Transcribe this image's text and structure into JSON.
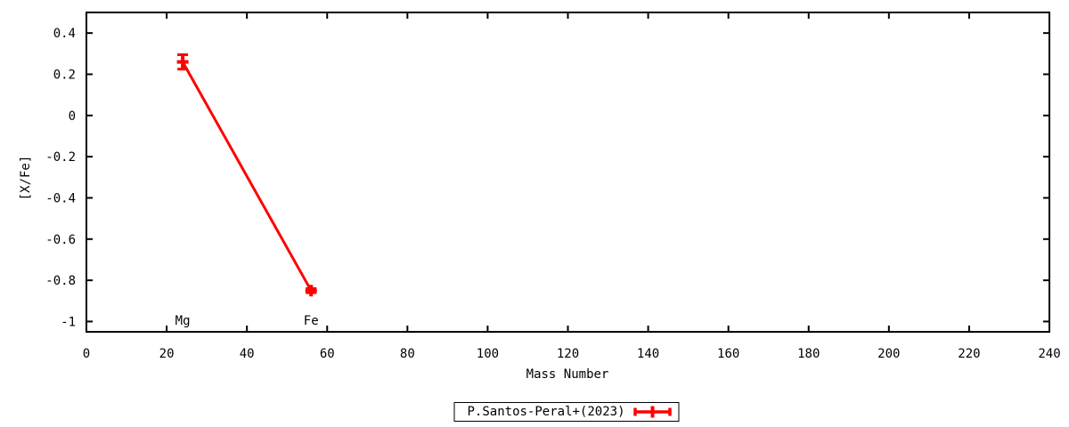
{
  "chart_data": {
    "type": "line",
    "title": "",
    "xlabel": "Mass Number",
    "ylabel": "[X/Fe]",
    "xlim": [
      0,
      240
    ],
    "ylim": [
      -1.05,
      0.5
    ],
    "grid": false,
    "legend_position": "below-center",
    "x_ticks": [
      {
        "value": 0,
        "label": "0"
      },
      {
        "value": 20,
        "label": "20"
      },
      {
        "value": 40,
        "label": "40"
      },
      {
        "value": 60,
        "label": "60"
      },
      {
        "value": 80,
        "label": "80"
      },
      {
        "value": 100,
        "label": "100"
      },
      {
        "value": 120,
        "label": "120"
      },
      {
        "value": 140,
        "label": "140"
      },
      {
        "value": 160,
        "label": "160"
      },
      {
        "value": 180,
        "label": "180"
      },
      {
        "value": 200,
        "label": "200"
      },
      {
        "value": 220,
        "label": "220"
      },
      {
        "value": 240,
        "label": "240"
      }
    ],
    "y_ticks": [
      {
        "value": 0.4,
        "label": "0.4"
      },
      {
        "value": 0.2,
        "label": "0.2"
      },
      {
        "value": 0,
        "label": "0"
      },
      {
        "value": -0.2,
        "label": "-0.2"
      },
      {
        "value": -0.4,
        "label": "-0.4"
      },
      {
        "value": -0.6,
        "label": "-0.6"
      },
      {
        "value": -0.8,
        "label": "-0.8"
      },
      {
        "value": -1,
        "label": "-1"
      }
    ],
    "series": [
      {
        "name": "P.Santos-Peral+(2023)",
        "color": "#ff0000",
        "style": "yerrorbars-line",
        "points": [
          {
            "x": 24,
            "y": 0.26,
            "yerr": 0.035,
            "label": "Mg"
          },
          {
            "x": 56,
            "y": -0.85,
            "yerr": 0.01,
            "label": "Fe"
          }
        ]
      }
    ]
  }
}
